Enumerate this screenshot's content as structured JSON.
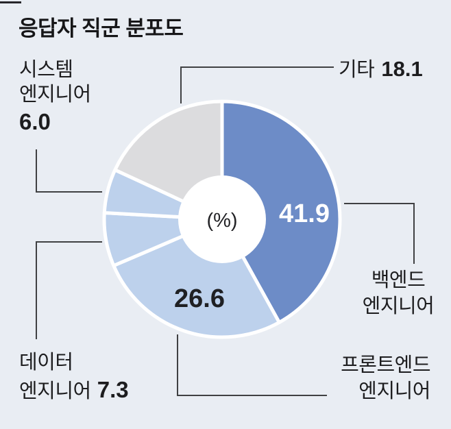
{
  "title": "응답자 직군 분포도",
  "chart_data": {
    "type": "pie",
    "subtype": "donut",
    "title": "응답자 직군 분포도",
    "unit_label": "(%)",
    "start_angle_deg": 0,
    "direction": "clockwise",
    "legend_position": "outside-callouts",
    "slices": [
      {
        "key": "backend",
        "name": "백엔드 엔지니어",
        "value": 41.9,
        "display": "41.9",
        "color": "#6d8cc7",
        "value_label_inside": true
      },
      {
        "key": "frontend",
        "name": "프론트엔드 엔지니어",
        "value": 26.6,
        "display": "26.6",
        "color": "#bdd1ec",
        "value_label_inside": true
      },
      {
        "key": "data",
        "name": "데이터 엔지니어",
        "value": 7.3,
        "display": "7.3",
        "color": "#bdd1ec",
        "value_label_inside": false
      },
      {
        "key": "system",
        "name": "시스템 엔지니어",
        "value": 6.0,
        "display": "6.0",
        "color": "#bdd1ec",
        "value_label_inside": false
      },
      {
        "key": "etc",
        "name": "기타",
        "value": 18.1,
        "display": "18.1",
        "color": "#dcdcde",
        "value_label_inside": false
      }
    ]
  },
  "callouts": {
    "system": {
      "line1": "시스템",
      "line2": "엔지니어",
      "value": "6.0"
    },
    "etc": {
      "line1": "기타",
      "value": "18.1"
    },
    "backend": {
      "line1": "백엔드",
      "line2": "엔지니어"
    },
    "frontend": {
      "line1": "프론트엔드",
      "line2": "엔지니어"
    },
    "data": {
      "line1": "데이터",
      "line2": "엔지니어",
      "value": "7.3"
    }
  },
  "colors": {
    "background": "#e9edf3",
    "slice_main": "#6d8cc7",
    "slice_light": "#bdd1ec",
    "slice_gray": "#dcdcde",
    "divider_white": "#ffffff",
    "text": "#1d1d1f",
    "leader_line": "#3f4042"
  }
}
